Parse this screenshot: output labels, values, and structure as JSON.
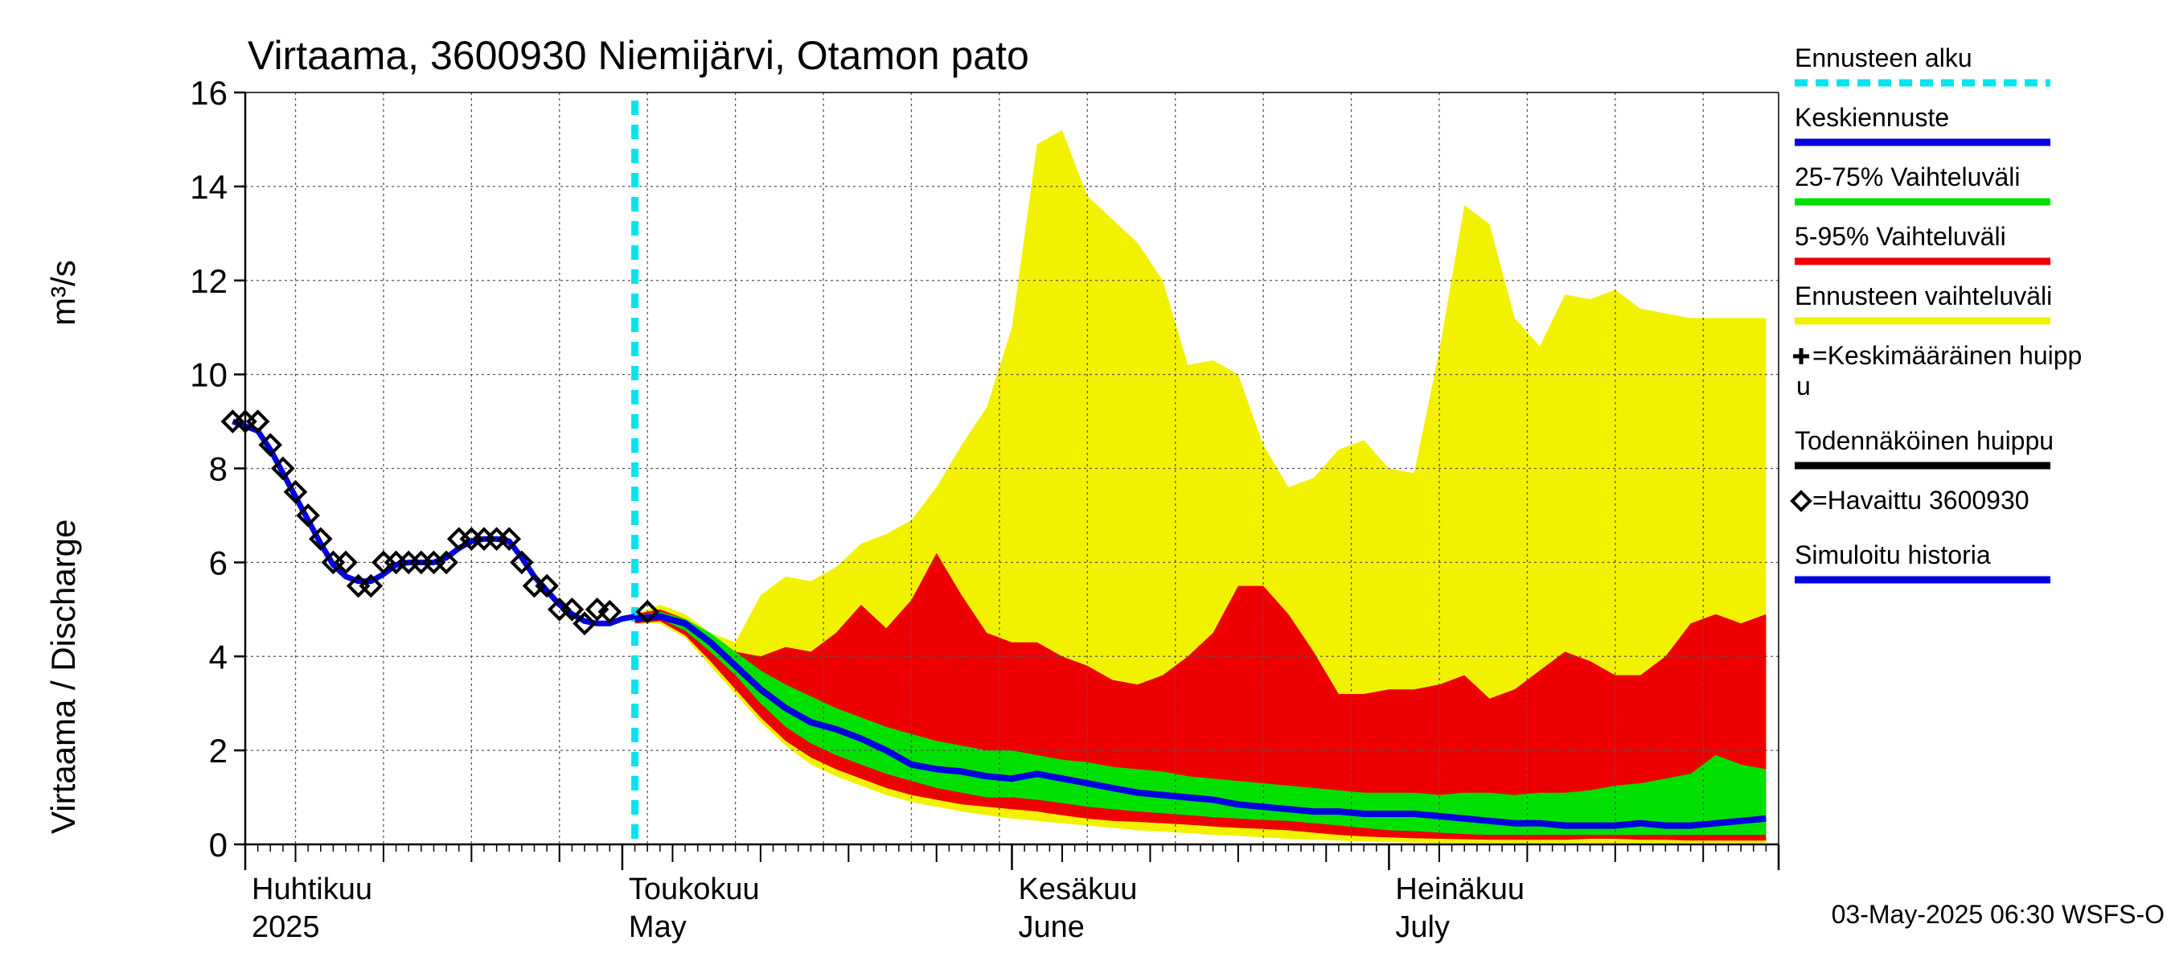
{
  "chart_data": {
    "type": "area",
    "title": "Virtaama, 3600930 Niemijärvi, Otamon pato",
    "ylabel": "Virtaama / Discharge",
    "yunit": "m³/s",
    "ylim": [
      0,
      16
    ],
    "yticks": [
      0,
      2,
      4,
      6,
      8,
      10,
      12,
      14,
      16
    ],
    "xlim": [
      "2025-04-01",
      "2025-07-31"
    ],
    "grid": true,
    "legend_position": "right",
    "forecast_start": "2025-05-02",
    "months": [
      {
        "label": "Huhtikuu",
        "sublabel": "2025",
        "date": "2025-04-01"
      },
      {
        "label": "Toukokuu",
        "sublabel": "May",
        "date": "2025-05-01"
      },
      {
        "label": "Kesäkuu",
        "sublabel": "June",
        "date": "2025-06-01"
      },
      {
        "label": "Heinäkuu",
        "sublabel": "July",
        "date": "2025-07-01"
      }
    ],
    "legend": [
      {
        "label": "Ennusteen alku",
        "color": "#00e5ee",
        "style": "dashed"
      },
      {
        "label": "Keskiennuste",
        "color": "#0000e0",
        "style": "line"
      },
      {
        "label": "25-75% Vaihteluväli",
        "color": "#00e000",
        "style": "band"
      },
      {
        "label": "5-95% Vaihteluväli",
        "color": "#ee0000",
        "style": "band"
      },
      {
        "label": "Ennusteen vaihteluväli",
        "color": "#f2f200",
        "style": "band"
      },
      {
        "label": "=Keskimääräinen huipp",
        "label2": "u",
        "color": "#000000",
        "style": "plus"
      },
      {
        "label": "Todennäköinen huippu",
        "color": "#000000",
        "style": "line"
      },
      {
        "label": "=Havaittu 3600930",
        "color": "#000000",
        "style": "diamond"
      },
      {
        "label": "Simuloitu historia",
        "color": "#0000e0",
        "style": "line"
      }
    ],
    "observed": {
      "x": [
        "2025-03-31",
        "2025-04-01",
        "2025-04-02",
        "2025-04-03",
        "2025-04-04",
        "2025-04-05",
        "2025-04-06",
        "2025-04-07",
        "2025-04-08",
        "2025-04-09",
        "2025-04-10",
        "2025-04-11",
        "2025-04-12",
        "2025-04-13",
        "2025-04-14",
        "2025-04-15",
        "2025-04-16",
        "2025-04-17",
        "2025-04-18",
        "2025-04-19",
        "2025-04-20",
        "2025-04-21",
        "2025-04-22",
        "2025-04-23",
        "2025-04-24",
        "2025-04-25",
        "2025-04-26",
        "2025-04-27",
        "2025-04-28",
        "2025-04-29",
        "2025-04-30",
        "2025-05-03"
      ],
      "y": [
        9.0,
        9.0,
        9.0,
        8.5,
        8.0,
        7.5,
        7.0,
        6.5,
        6.0,
        6.0,
        5.5,
        5.5,
        6.0,
        6.0,
        6.0,
        6.0,
        6.0,
        6.0,
        6.5,
        6.5,
        6.5,
        6.5,
        6.5,
        6.0,
        5.5,
        5.5,
        5.0,
        5.0,
        4.7,
        5.0,
        4.95,
        4.95
      ]
    },
    "simulated_history": {
      "x": [
        "2025-03-31",
        "2025-04-01",
        "2025-04-02",
        "2025-04-03",
        "2025-04-04",
        "2025-04-05",
        "2025-04-06",
        "2025-04-07",
        "2025-04-08",
        "2025-04-09",
        "2025-04-10",
        "2025-04-11",
        "2025-04-12",
        "2025-04-13",
        "2025-04-14",
        "2025-04-15",
        "2025-04-16",
        "2025-04-17",
        "2025-04-18",
        "2025-04-19",
        "2025-04-20",
        "2025-04-21",
        "2025-04-22",
        "2025-04-23",
        "2025-04-24",
        "2025-04-25",
        "2025-04-26",
        "2025-04-27",
        "2025-04-28",
        "2025-04-29",
        "2025-04-30",
        "2025-05-01",
        "2025-05-02"
      ],
      "y": [
        9.0,
        8.9,
        8.8,
        8.4,
        7.9,
        7.4,
        6.9,
        6.4,
        5.95,
        5.7,
        5.6,
        5.6,
        5.75,
        5.95,
        6.0,
        6.0,
        6.0,
        6.1,
        6.3,
        6.45,
        6.5,
        6.5,
        6.45,
        6.1,
        5.7,
        5.4,
        5.1,
        4.9,
        4.75,
        4.7,
        4.7,
        4.8,
        4.85
      ]
    },
    "forecast": {
      "x": [
        "2025-05-02",
        "2025-05-04",
        "2025-05-06",
        "2025-05-08",
        "2025-05-10",
        "2025-05-12",
        "2025-05-14",
        "2025-05-16",
        "2025-05-18",
        "2025-05-20",
        "2025-05-22",
        "2025-05-24",
        "2025-05-26",
        "2025-05-28",
        "2025-05-30",
        "2025-06-01",
        "2025-06-03",
        "2025-06-05",
        "2025-06-07",
        "2025-06-09",
        "2025-06-11",
        "2025-06-13",
        "2025-06-15",
        "2025-06-17",
        "2025-06-19",
        "2025-06-21",
        "2025-06-23",
        "2025-06-25",
        "2025-06-27",
        "2025-06-29",
        "2025-07-01",
        "2025-07-03",
        "2025-07-05",
        "2025-07-07",
        "2025-07-09",
        "2025-07-11",
        "2025-07-13",
        "2025-07-15",
        "2025-07-17",
        "2025-07-19",
        "2025-07-21",
        "2025-07-23",
        "2025-07-25",
        "2025-07-27",
        "2025-07-29",
        "2025-07-31"
      ],
      "min": [
        4.7,
        4.7,
        4.4,
        3.8,
        3.2,
        2.6,
        2.1,
        1.7,
        1.45,
        1.25,
        1.05,
        0.9,
        0.8,
        0.7,
        0.62,
        0.55,
        0.5,
        0.45,
        0.4,
        0.35,
        0.3,
        0.27,
        0.24,
        0.2,
        0.18,
        0.15,
        0.12,
        0.1,
        0.08,
        0.06,
        0.05,
        0.04,
        0.03,
        0.03,
        0.03,
        0.03,
        0.03,
        0.03,
        0.03,
        0.03,
        0.03,
        0.03,
        0.03,
        0.03,
        0.03,
        0.03
      ],
      "p5": [
        4.7,
        4.75,
        4.45,
        3.9,
        3.3,
        2.7,
        2.2,
        1.85,
        1.6,
        1.4,
        1.2,
        1.05,
        0.95,
        0.85,
        0.8,
        0.75,
        0.7,
        0.62,
        0.55,
        0.5,
        0.48,
        0.45,
        0.42,
        0.38,
        0.35,
        0.33,
        0.3,
        0.25,
        0.2,
        0.17,
        0.15,
        0.13,
        0.12,
        0.11,
        0.1,
        0.1,
        0.1,
        0.1,
        0.12,
        0.12,
        0.1,
        0.1,
        0.08,
        0.08,
        0.08,
        0.08
      ],
      "p25": [
        4.75,
        4.8,
        4.55,
        4.1,
        3.6,
        3.0,
        2.5,
        2.15,
        1.9,
        1.7,
        1.5,
        1.35,
        1.2,
        1.1,
        1.0,
        1.0,
        0.95,
        0.88,
        0.8,
        0.75,
        0.7,
        0.66,
        0.62,
        0.58,
        0.55,
        0.52,
        0.5,
        0.45,
        0.4,
        0.35,
        0.3,
        0.28,
        0.25,
        0.22,
        0.2,
        0.2,
        0.2,
        0.2,
        0.2,
        0.2,
        0.2,
        0.2,
        0.2,
        0.2,
        0.2,
        0.2
      ],
      "median": [
        4.8,
        4.85,
        4.7,
        4.3,
        3.8,
        3.3,
        2.9,
        2.6,
        2.45,
        2.25,
        2.0,
        1.7,
        1.6,
        1.55,
        1.45,
        1.4,
        1.5,
        1.4,
        1.3,
        1.2,
        1.1,
        1.05,
        1.0,
        0.95,
        0.85,
        0.8,
        0.75,
        0.7,
        0.7,
        0.65,
        0.65,
        0.65,
        0.6,
        0.55,
        0.5,
        0.45,
        0.45,
        0.4,
        0.4,
        0.4,
        0.45,
        0.4,
        0.4,
        0.45,
        0.5,
        0.55
      ],
      "p75": [
        4.85,
        4.95,
        4.8,
        4.5,
        4.1,
        3.7,
        3.4,
        3.15,
        2.9,
        2.7,
        2.5,
        2.35,
        2.2,
        2.1,
        2.0,
        2.0,
        1.9,
        1.8,
        1.75,
        1.65,
        1.6,
        1.55,
        1.45,
        1.4,
        1.35,
        1.3,
        1.25,
        1.2,
        1.15,
        1.1,
        1.1,
        1.1,
        1.05,
        1.1,
        1.1,
        1.05,
        1.1,
        1.1,
        1.15,
        1.25,
        1.3,
        1.4,
        1.5,
        1.9,
        1.7,
        1.6
      ],
      "p95": [
        4.9,
        5.0,
        4.8,
        4.4,
        4.1,
        4.0,
        4.2,
        4.1,
        4.5,
        5.1,
        4.6,
        5.2,
        6.2,
        5.3,
        4.5,
        4.3,
        4.3,
        4.0,
        3.8,
        3.5,
        3.4,
        3.6,
        4.0,
        4.5,
        5.5,
        5.5,
        4.9,
        4.1,
        3.2,
        3.2,
        3.3,
        3.3,
        3.4,
        3.6,
        3.1,
        3.3,
        3.7,
        4.1,
        3.9,
        3.6,
        3.6,
        4.0,
        4.7,
        4.9,
        4.7,
        4.9
      ],
      "max": [
        4.9,
        5.1,
        4.9,
        4.5,
        4.3,
        5.3,
        5.7,
        5.6,
        5.9,
        6.4,
        6.6,
        6.9,
        7.6,
        8.5,
        9.3,
        11.0,
        14.9,
        15.2,
        13.8,
        13.3,
        12.8,
        12.0,
        10.2,
        10.3,
        10.0,
        8.5,
        7.6,
        7.8,
        8.4,
        8.6,
        8.0,
        7.9,
        10.5,
        13.6,
        13.2,
        11.2,
        10.6,
        11.7,
        11.6,
        11.8,
        11.4,
        11.3,
        11.2,
        11.2,
        11.2,
        11.2
      ]
    }
  },
  "footer": "03-May-2025 06:30 WSFS-O"
}
